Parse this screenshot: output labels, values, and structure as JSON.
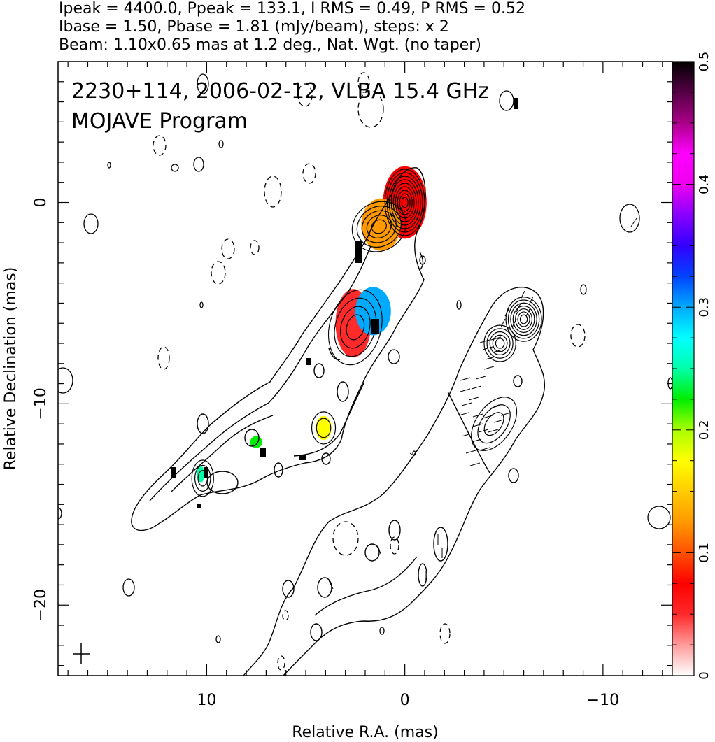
{
  "header": {
    "line1": "Ipeak = 4400.0, Ppeak = 133.1, I RMS = 0.49, P RMS = 0.52",
    "line2": "Ibase = 1.50, Pbase = 1.81 (mJy/beam), steps: x 2",
    "line3": "Beam: 1.10x0.65 mas at 1.2 deg., Nat. Wgt. (no taper)"
  },
  "chart_data": {
    "type": "heatmap",
    "title": "2230+114, 2006-02-12, VLBA 15.4 GHz",
    "subtitle": "MOJAVE Program",
    "xlabel": "Relative R.A. (mas)",
    "ylabel": "Relative Declination (mas)",
    "xlim": [
      17.5,
      -13.5
    ],
    "ylim": [
      -23.5,
      7.0
    ],
    "x_ticks": [
      10,
      0,
      -10
    ],
    "x_tick_labels": [
      "10",
      "0",
      "−10"
    ],
    "y_ticks": [
      0,
      -10,
      -20
    ],
    "y_tick_labels": [
      "0",
      "−10",
      "−20"
    ],
    "colorbar": {
      "range": [
        0,
        0.5
      ],
      "ticks": [
        0,
        0.1,
        0.2,
        0.3,
        0.4,
        0.5
      ],
      "tick_labels": [
        "0",
        "0.1",
        "0.2",
        "0.3",
        "0.4",
        "0.5"
      ],
      "colors": [
        "#ffffff",
        "#ff9a9a",
        "#ff2a2a",
        "#ff0000",
        "#ff5000",
        "#ff9900",
        "#ffcc00",
        "#ffff00",
        "#aaff00",
        "#00ee00",
        "#00ffaa",
        "#00ffff",
        "#00aaff",
        "#0044ff",
        "#3300ff",
        "#8800ff",
        "#ee00ee",
        "#ff00ff",
        "#aa0088",
        "#550044",
        "#000000"
      ]
    },
    "polarization_patches": [
      {
        "x": 0.0,
        "y": 0.0,
        "rx": 1.1,
        "ry": 1.8,
        "level": 0.08
      },
      {
        "x": 1.2,
        "y": -1.1,
        "rx": 1.0,
        "ry": 1.3,
        "level": 0.13
      },
      {
        "x": 2.6,
        "y": -6.0,
        "rx": 0.9,
        "ry": 1.7,
        "level": 0.06
      },
      {
        "x": 1.6,
        "y": -5.4,
        "rx": 0.9,
        "ry": 1.2,
        "level": 0.3
      },
      {
        "x": 4.1,
        "y": -11.2,
        "rx": 0.4,
        "ry": 0.6,
        "level": 0.18
      },
      {
        "x": 7.5,
        "y": -11.9,
        "rx": 0.3,
        "ry": 0.3,
        "level": 0.22
      },
      {
        "x": 10.3,
        "y": -13.5,
        "rx": 0.2,
        "ry": 0.4,
        "level": 0.25
      }
    ],
    "contour_sources": [
      {
        "x": 0.0,
        "y": 0.0,
        "rx": 1.0,
        "ry": 1.65,
        "angle": 0,
        "levels": 9
      },
      {
        "x": 1.3,
        "y": -1.2,
        "rx": 1.4,
        "ry": 1.2,
        "angle": -30,
        "levels": 5
      },
      {
        "x": 2.5,
        "y": -6.2,
        "rx": 1.3,
        "ry": 1.9,
        "angle": 15,
        "levels": 4
      },
      {
        "x": 4.1,
        "y": -11.2,
        "rx": 0.6,
        "ry": 0.8,
        "angle": 0,
        "levels": 2
      },
      {
        "x": 10.2,
        "y": -13.7,
        "rx": 0.55,
        "ry": 0.9,
        "angle": 0,
        "levels": 3
      },
      {
        "x": -6.0,
        "y": -5.8,
        "rx": 0.9,
        "ry": 1.1,
        "angle": 0,
        "levels": 7
      },
      {
        "x": -4.8,
        "y": -7.0,
        "rx": 0.8,
        "ry": 0.9,
        "angle": 0,
        "levels": 5
      },
      {
        "x": -4.5,
        "y": -11.0,
        "rx": 0.9,
        "ry": 1.5,
        "angle": 35,
        "levels": 3
      }
    ]
  }
}
